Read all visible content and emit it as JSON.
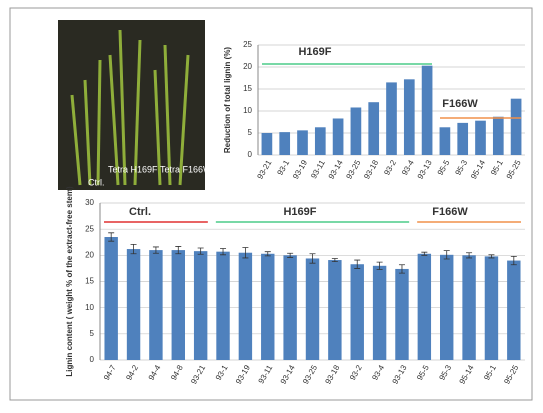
{
  "photo": {
    "labels": [
      "Ctrl.",
      "Tetra H169F",
      "Tetra F166W"
    ]
  },
  "chart_data": [
    {
      "type": "bar",
      "ylabel": "Reduction of total lignin (%)",
      "categories": [
        "93-21",
        "93-1",
        "93-19",
        "93-11",
        "93-14",
        "93-25",
        "93-18",
        "93-2",
        "93-4",
        "93-13",
        "95-5",
        "95-3",
        "95-14",
        "95-1",
        "95-25"
      ],
      "values": [
        5,
        5.2,
        5.6,
        6.3,
        8.3,
        10.8,
        12,
        16.5,
        17.2,
        20.3,
        6.3,
        7.3,
        7.8,
        8.7,
        12.8
      ],
      "color": "#4f81bd",
      "ylim": [
        0,
        25
      ],
      "yticks": [
        0,
        5,
        10,
        15,
        20,
        25
      ],
      "grid": true,
      "groups": [
        {
          "label": "H169F",
          "color": "#4ccc88"
        },
        {
          "label": "F166W",
          "color": "#f0904a"
        }
      ]
    },
    {
      "type": "bar",
      "ylabel": "Lignin content ( weight % of the extract-free stem)",
      "categories": [
        "94-7",
        "94-2",
        "94-4",
        "94-8",
        "93-21",
        "93-1",
        "93-19",
        "93-11",
        "93-14",
        "93-25",
        "93-18",
        "93-2",
        "93-4",
        "93-13",
        "95-5",
        "95-3",
        "95-14",
        "95-1",
        "95-25"
      ],
      "values": [
        23.5,
        21.2,
        21,
        21,
        20.8,
        20.7,
        20.5,
        20.3,
        20,
        19.4,
        19.1,
        18.3,
        18,
        17.4,
        20.3,
        20.1,
        20,
        19.8,
        19
      ],
      "errors": [
        0.8,
        0.9,
        0.6,
        0.7,
        0.6,
        0.6,
        1,
        0.4,
        0.4,
        0.9,
        0.3,
        0.8,
        0.7,
        0.8,
        0.3,
        0.8,
        0.5,
        0.3,
        0.8
      ],
      "color": "#4f81bd",
      "ylim": [
        0,
        30
      ],
      "yticks": [
        0,
        5,
        10,
        15,
        20,
        25,
        30
      ],
      "grid": true,
      "groups": [
        {
          "label": "Ctrl.",
          "color": "#e03030"
        },
        {
          "label": "H169F",
          "color": "#4ccc88"
        },
        {
          "label": "F166W",
          "color": "#f0904a"
        }
      ]
    }
  ]
}
